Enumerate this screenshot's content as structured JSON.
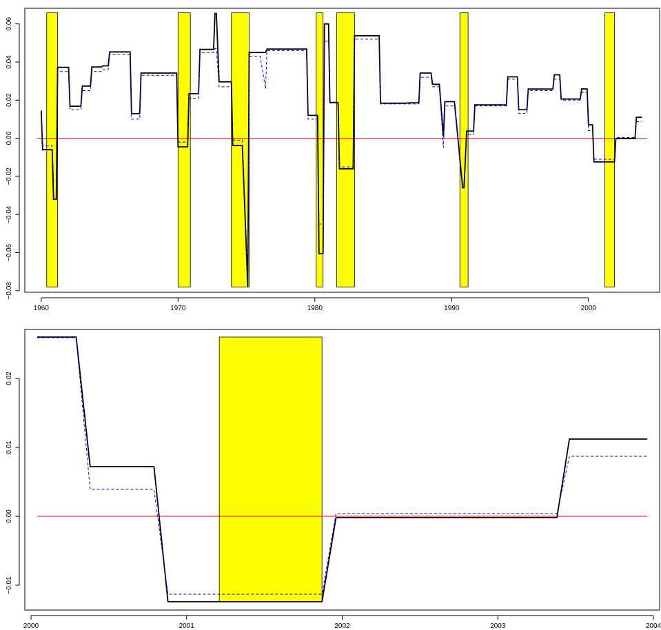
{
  "chart_data": [
    {
      "type": "line",
      "title": "",
      "xlabel": "",
      "ylabel": "",
      "xlim": [
        1958.8,
        2005.2
      ],
      "ylim": [
        -0.0808,
        0.0682
      ],
      "x_ticks": [
        1960,
        1970,
        1980,
        1990,
        2000
      ],
      "x_tick_labels": [
        "1960",
        "1970",
        "1980",
        "1990",
        "2000"
      ],
      "y_ticks": [
        -0.08,
        -0.06,
        -0.04,
        -0.02,
        0.0,
        0.02,
        0.04,
        0.06
      ],
      "y_tick_labels": [
        "−0.08",
        "−0.06",
        "−0.04",
        "−0.02",
        "0.00",
        "0.02",
        "0.04",
        "0.06"
      ],
      "grid": false,
      "colors": {
        "series_solid": "#000000",
        "series_dashed": "#0000ff",
        "zero_line": "#ff0000",
        "recession": "#ffff00"
      },
      "recession_bands": [
        {
          "start": 1960.4,
          "end": 1961.2
        },
        {
          "start": 1970.0,
          "end": 1970.9
        },
        {
          "start": 1973.9,
          "end": 1975.2
        },
        {
          "start": 1980.1,
          "end": 1980.6
        },
        {
          "start": 1981.6,
          "end": 1982.9
        },
        {
          "start": 1990.6,
          "end": 1991.2
        },
        {
          "start": 2001.2,
          "end": 2001.9
        }
      ],
      "band_y_range": [
        -0.078,
        0.0658
      ],
      "reference_line": {
        "y": 0.0
      },
      "series": [
        {
          "style": "solid",
          "x": [
            1960.0,
            1960.1,
            1960.4,
            1960.5,
            1960.8,
            1960.9,
            1961.1,
            1961.2,
            1962.0,
            1962.1,
            1962.9,
            1963.0,
            1963.6,
            1963.7,
            1964.4,
            1964.5,
            1964.9,
            1965.0,
            1966.5,
            1966.6,
            1967.2,
            1967.3,
            1968.0,
            1969.9,
            1970.0,
            1970.7,
            1970.8,
            1971.5,
            1971.6,
            1972.1,
            1972.2,
            1972.6,
            1972.7,
            1972.8,
            1973.0,
            1973.1,
            1973.9,
            1974.0,
            1974.6,
            1974.7,
            1975.1,
            1975.2,
            1976.0,
            1976.4,
            1976.5,
            1977.5,
            1978.0,
            1979.4,
            1979.5,
            1980.2,
            1980.3,
            1980.6,
            1980.7,
            1981.0,
            1981.1,
            1981.7,
            1981.8,
            1982.8,
            1982.9,
            1983.9,
            1984.7,
            1984.8,
            1986.6,
            1987.0,
            1987.6,
            1987.7,
            1988.5,
            1988.6,
            1989.0,
            1989.1,
            1989.4,
            1989.5,
            1990.1,
            1990.2,
            1990.8,
            1990.9,
            1991.1,
            1991.2,
            1991.6,
            1991.7,
            1993.0,
            1993.1,
            1994.0,
            1994.1,
            1994.8,
            1994.9,
            1995.5,
            1995.6,
            1997.4,
            1997.5,
            1997.9,
            1998.0,
            1998.5,
            1998.6,
            1999.4,
            1999.5,
            1999.9,
            2000.0,
            2000.3,
            2000.4,
            2000.8,
            2000.9,
            2001.9,
            2002.0,
            2003.4,
            2003.5,
            2003.9
          ],
          "y": [
            0.0145,
            -0.006,
            -0.006,
            -0.006,
            -0.006,
            -0.032,
            -0.032,
            0.0372,
            0.0372,
            0.0168,
            0.0168,
            0.0274,
            0.0274,
            0.0374,
            0.0374,
            0.038,
            0.038,
            0.0453,
            0.0453,
            0.0129,
            0.0129,
            0.0342,
            0.0342,
            0.0342,
            -0.0045,
            -0.0045,
            0.0234,
            0.0234,
            0.0466,
            0.0466,
            0.0466,
            0.0466,
            0.0655,
            0.0655,
            0.0296,
            0.0296,
            0.0296,
            -0.0038,
            -0.0038,
            -0.0038,
            -0.078,
            0.045,
            0.045,
            0.045,
            0.0468,
            0.0468,
            0.0468,
            0.0468,
            0.012,
            0.012,
            -0.0605,
            -0.0605,
            0.06,
            0.06,
            0.0187,
            0.0187,
            -0.016,
            -0.016,
            0.0538,
            0.0538,
            0.0538,
            0.0184,
            0.0184,
            0.0186,
            0.0186,
            0.0342,
            0.0342,
            0.0283,
            0.0283,
            0.0283,
            0.0008,
            0.0192,
            0.0192,
            0.0192,
            -0.026,
            -0.026,
            0.0038,
            0.0038,
            0.0038,
            0.0175,
            0.0175,
            0.0175,
            0.0175,
            0.0322,
            0.0322,
            0.015,
            0.015,
            0.0258,
            0.0258,
            0.0333,
            0.0333,
            0.0206,
            0.0206,
            0.0206,
            0.0206,
            0.0259,
            0.0259,
            0.007,
            0.007,
            -0.0124,
            -0.0124,
            -0.0124,
            -0.0124,
            -0.0002,
            -0.0002,
            0.011,
            0.011
          ]
        },
        {
          "style": "dashed",
          "x": [
            1960.0,
            1960.1,
            1960.4,
            1960.5,
            1960.8,
            1960.9,
            1961.1,
            1961.2,
            1962.0,
            1962.1,
            1962.9,
            1963.0,
            1963.6,
            1963.7,
            1964.4,
            1964.5,
            1964.9,
            1965.0,
            1966.5,
            1966.6,
            1967.2,
            1967.3,
            1968.0,
            1969.9,
            1970.0,
            1970.7,
            1970.8,
            1971.5,
            1971.6,
            1972.1,
            1972.2,
            1972.6,
            1972.7,
            1972.8,
            1973.0,
            1973.1,
            1973.9,
            1974.0,
            1974.6,
            1974.7,
            1975.1,
            1975.2,
            1976.0,
            1976.4,
            1976.5,
            1977.5,
            1978.0,
            1979.4,
            1979.5,
            1980.2,
            1980.3,
            1980.6,
            1980.7,
            1981.0,
            1981.1,
            1981.7,
            1981.8,
            1982.8,
            1982.9,
            1983.9,
            1984.7,
            1984.8,
            1986.6,
            1987.0,
            1987.6,
            1987.7,
            1988.5,
            1988.6,
            1989.0,
            1989.1,
            1989.4,
            1989.5,
            1990.1,
            1990.2,
            1990.8,
            1990.9,
            1991.1,
            1991.2,
            1991.6,
            1991.7,
            1993.0,
            1993.1,
            1994.0,
            1994.1,
            1994.8,
            1994.9,
            1995.5,
            1995.6,
            1997.4,
            1997.5,
            1997.9,
            1998.0,
            1998.5,
            1998.6,
            1999.4,
            1999.5,
            1999.9,
            2000.0,
            2000.3,
            2000.4,
            2000.8,
            2000.9,
            2001.9,
            2002.0,
            2003.4,
            2003.5,
            2003.9
          ],
          "y": [
            0.012,
            -0.004,
            -0.004,
            -0.004,
            -0.004,
            -0.022,
            -0.022,
            0.035,
            0.035,
            0.015,
            0.015,
            0.025,
            0.025,
            0.035,
            0.035,
            0.036,
            0.036,
            0.044,
            0.044,
            0.01,
            0.01,
            0.033,
            0.033,
            0.033,
            -0.002,
            -0.002,
            0.021,
            0.021,
            0.045,
            0.045,
            0.045,
            0.045,
            0.047,
            0.047,
            0.027,
            0.027,
            0.027,
            -0.001,
            -0.001,
            -0.001,
            -0.075,
            0.043,
            0.043,
            0.026,
            0.046,
            0.046,
            0.046,
            0.046,
            0.01,
            0.01,
            -0.045,
            -0.045,
            0.051,
            0.051,
            0.019,
            0.019,
            -0.015,
            -0.015,
            0.052,
            0.052,
            0.052,
            0.018,
            0.018,
            0.018,
            0.018,
            0.032,
            0.032,
            0.027,
            0.027,
            0.027,
            -0.005,
            0.017,
            0.017,
            0.017,
            -0.024,
            -0.024,
            0.002,
            0.002,
            0.002,
            0.017,
            0.017,
            0.017,
            0.017,
            0.031,
            0.031,
            0.013,
            0.013,
            0.025,
            0.025,
            0.031,
            0.031,
            0.02,
            0.02,
            0.02,
            0.02,
            0.024,
            0.024,
            0.004,
            0.004,
            -0.011,
            -0.011,
            -0.011,
            -0.011,
            0.0004,
            0.0004,
            0.0087,
            0.0087
          ]
        }
      ]
    },
    {
      "type": "line",
      "title": "",
      "xlabel": "",
      "ylabel": "",
      "xlim": [
        1999.96,
        2004.04
      ],
      "ylim": [
        -0.0136,
        0.0271
      ],
      "x_ticks": [
        2000,
        2001,
        2002,
        2003,
        2004
      ],
      "x_tick_labels": [
        "2000",
        "2001",
        "2002",
        "2003",
        "2004"
      ],
      "y_ticks": [
        -0.01,
        0.0,
        0.01,
        0.02
      ],
      "y_tick_labels": [
        "−0.01",
        "0.00",
        "0.01",
        "0.02"
      ],
      "grid": false,
      "colors": {
        "series_solid": "#000000",
        "series_dashed": "#0000ff",
        "zero_line": "#ff0000",
        "recession": "#ffff00"
      },
      "recession_bands": [
        {
          "start": 2001.21,
          "end": 2001.87
        }
      ],
      "band_y_range": [
        -0.0124,
        0.026
      ],
      "reference_line": {
        "y": 0.0
      },
      "series": [
        {
          "style": "solid",
          "x": [
            2000.04,
            2000.29,
            2000.38,
            2000.79,
            2000.88,
            2001.87,
            2001.96,
            2003.38,
            2003.46,
            2003.96
          ],
          "y": [
            0.026,
            0.026,
            0.0072,
            0.0072,
            -0.0124,
            -0.0124,
            -0.0002,
            -0.0002,
            0.0112,
            0.0112
          ]
        },
        {
          "style": "dashed",
          "x": [
            2000.04,
            2000.29,
            2000.38,
            2000.79,
            2000.88,
            2001.87,
            2001.96,
            2003.38,
            2003.46,
            2003.96
          ],
          "y": [
            0.0259,
            0.0259,
            0.0039,
            0.0039,
            -0.0113,
            -0.0113,
            0.0004,
            0.0004,
            0.0087,
            0.0087
          ]
        }
      ]
    }
  ]
}
